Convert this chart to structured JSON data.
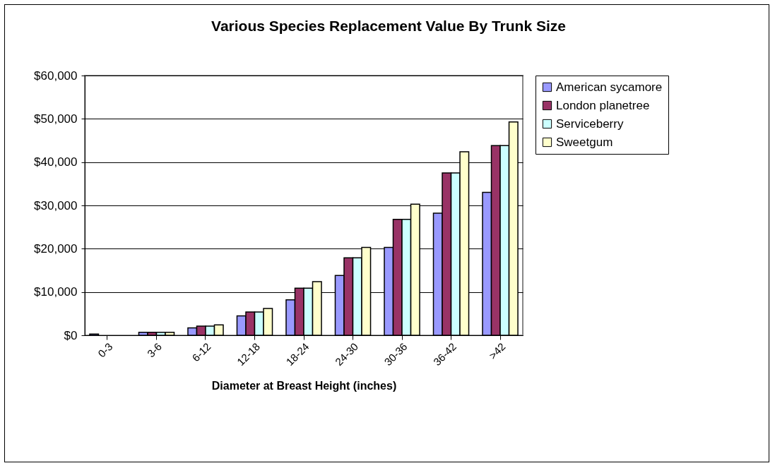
{
  "chart_data": {
    "type": "bar",
    "title": "Various Species Replacement Value By Trunk Size",
    "xlabel": "Diameter at Breast Height (inches)",
    "categories": [
      "0-3",
      "3-6",
      "6-12",
      "12-18",
      "18-24",
      "24-30",
      "30-36",
      "36-42",
      ">42"
    ],
    "series": [
      {
        "name": "American sycamore",
        "color": "#9999ff",
        "values": [
          300,
          700,
          1700,
          4500,
          8200,
          13800,
          20300,
          28200,
          33000
        ]
      },
      {
        "name": "London planetree",
        "color": "#993366",
        "values": [
          null,
          700,
          2100,
          5400,
          10900,
          17900,
          26800,
          37500,
          43800
        ]
      },
      {
        "name": "Serviceberry",
        "color": "#ccffff",
        "values": [
          null,
          700,
          2100,
          5400,
          10900,
          17900,
          26800,
          37500,
          43800
        ]
      },
      {
        "name": "Sweetgum",
        "color": "#ffffcc",
        "values": [
          null,
          700,
          2400,
          6200,
          12400,
          20300,
          30300,
          42400,
          49300
        ]
      }
    ],
    "ylim": [
      0,
      60000
    ],
    "yticks": [
      {
        "value": 0,
        "label": "$0"
      },
      {
        "value": 10000,
        "label": "$10,000"
      },
      {
        "value": 20000,
        "label": "$20,000"
      },
      {
        "value": 30000,
        "label": "$30,000"
      },
      {
        "value": 40000,
        "label": "$40,000"
      },
      {
        "value": 50000,
        "label": "$50,000"
      },
      {
        "value": 60000,
        "label": "$60,000"
      }
    ],
    "grid": "y",
    "legend": "right"
  }
}
